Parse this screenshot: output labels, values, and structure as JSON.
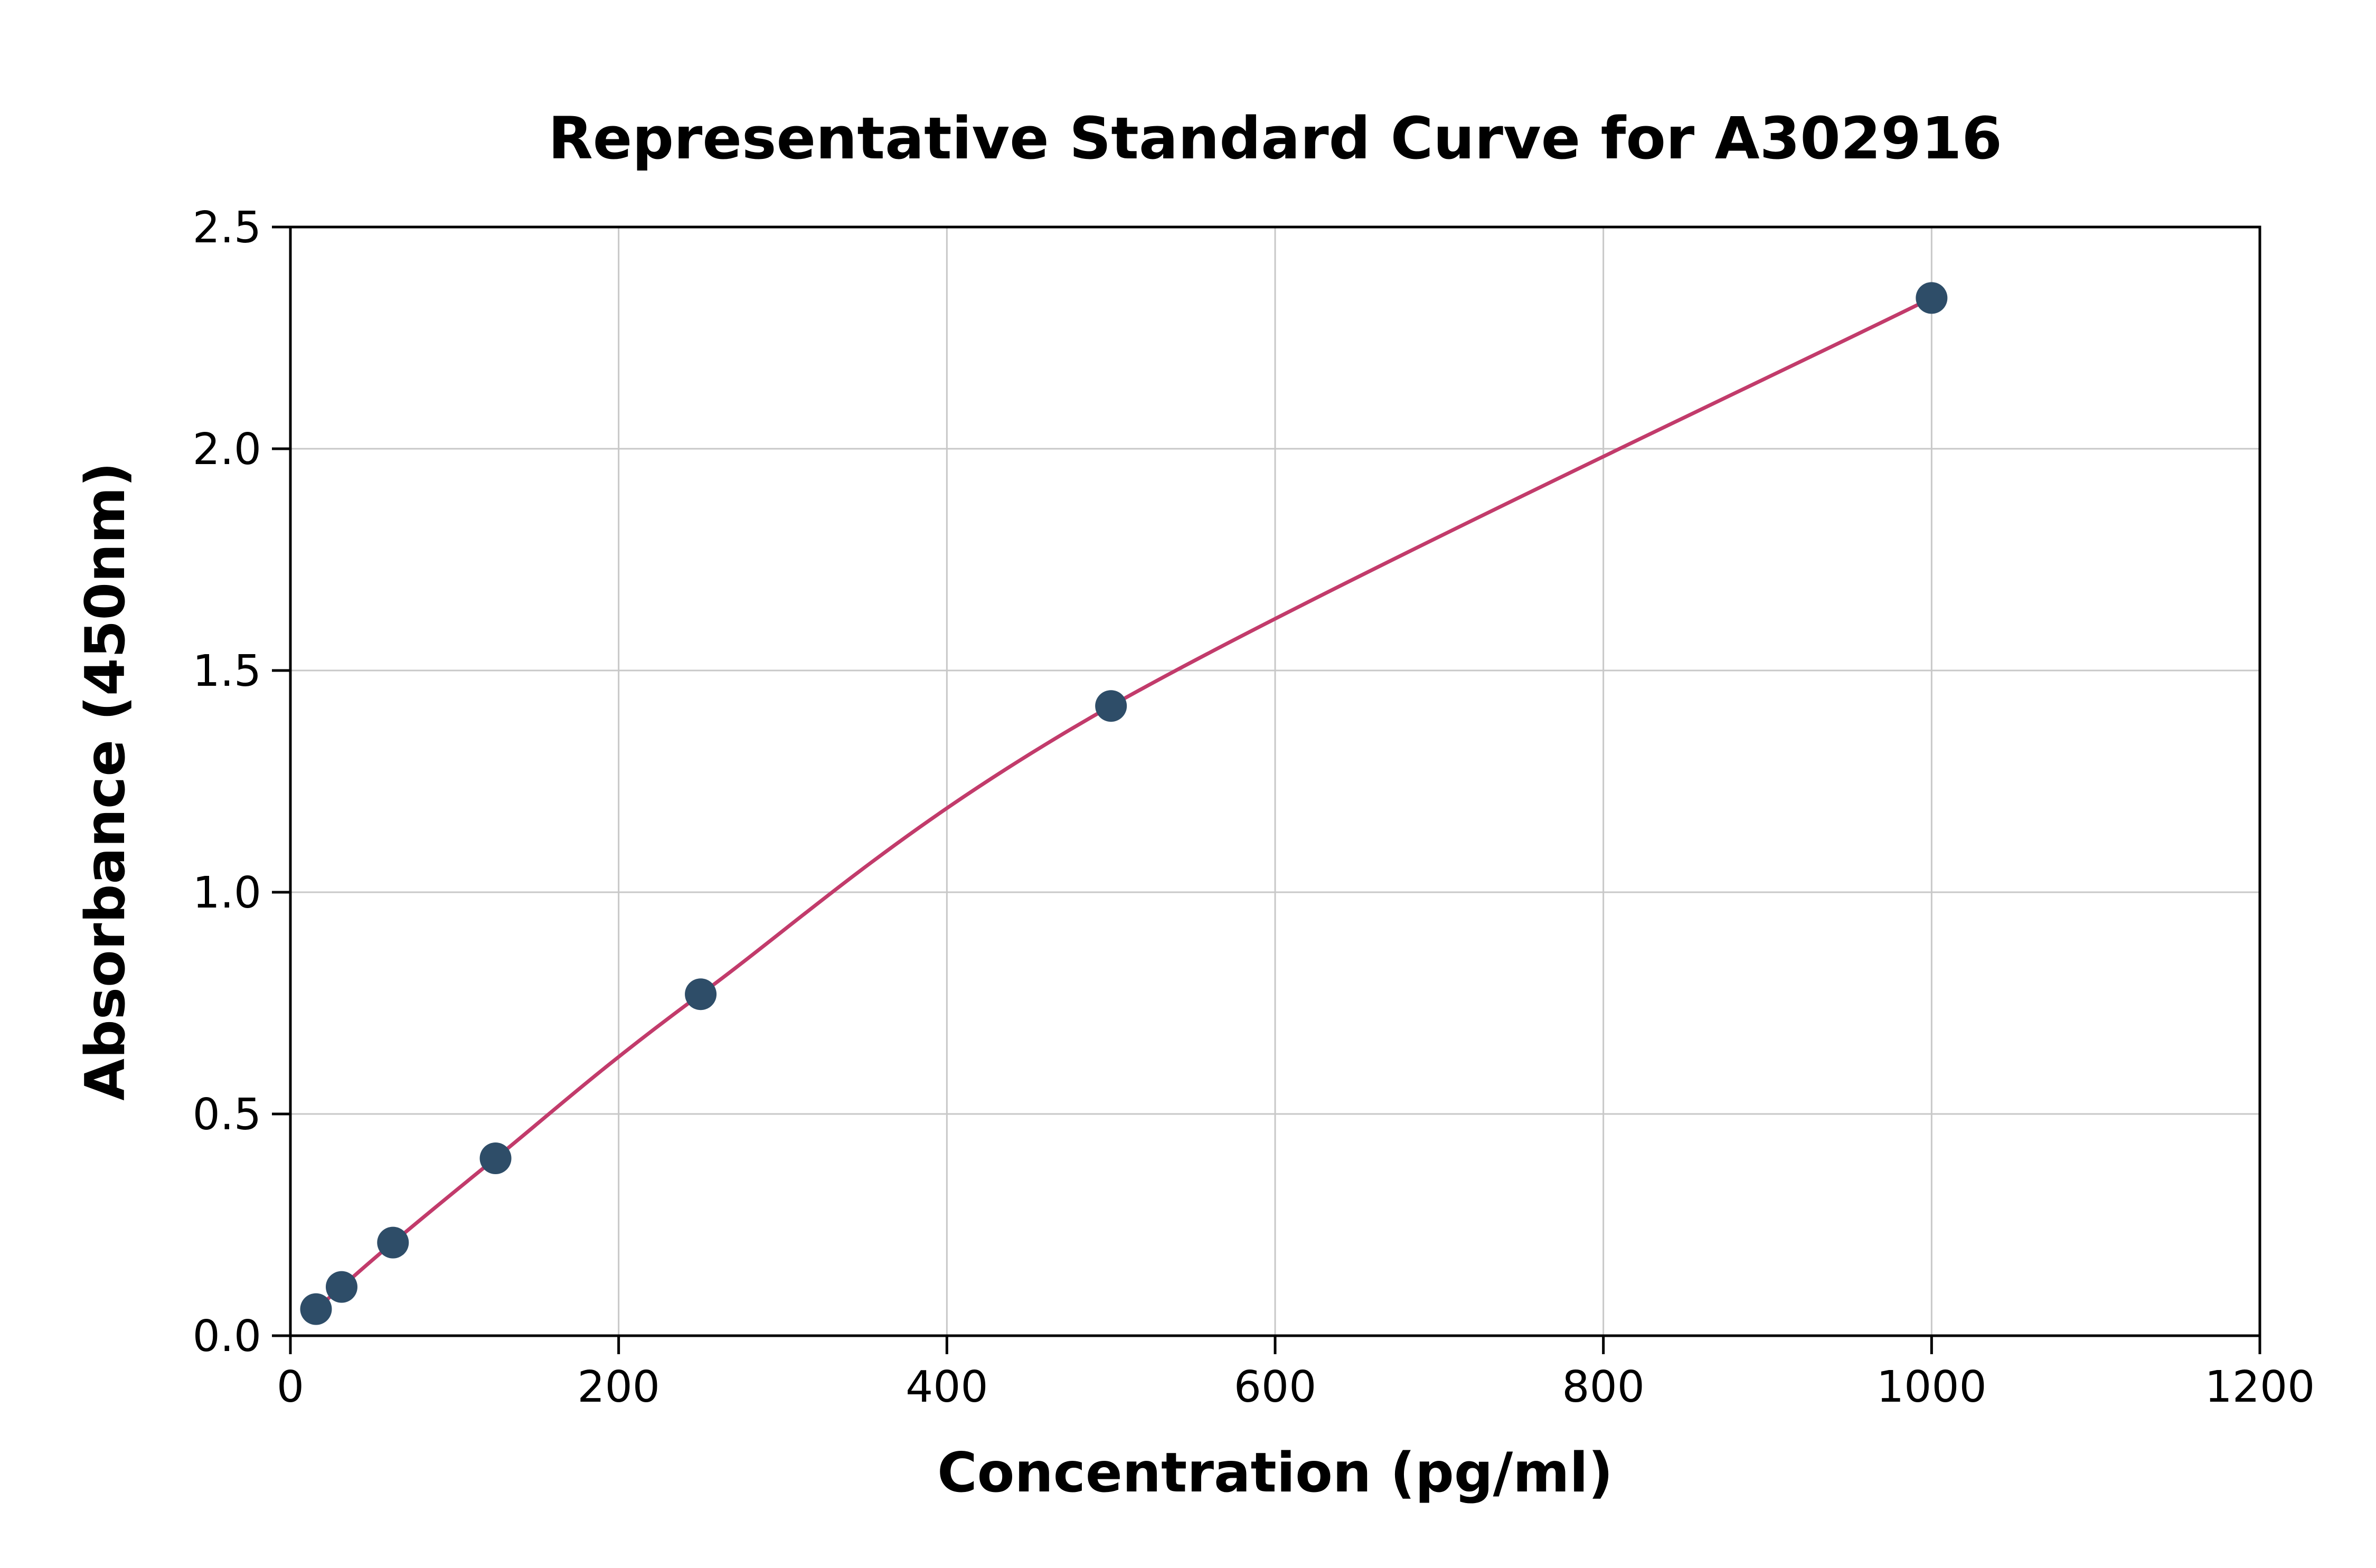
{
  "chart_data": {
    "type": "scatter",
    "title": "Representative Standard Curve for A302916",
    "xlabel": "Concentration (pg/ml)",
    "ylabel": "Absorbance (450nm)",
    "xlim": [
      0,
      1200
    ],
    "ylim": [
      0,
      2.5
    ],
    "xticks": [
      0,
      200,
      400,
      600,
      800,
      1000,
      1200
    ],
    "xtick_labels": [
      "0",
      "200",
      "400",
      "600",
      "800",
      "1000",
      "1200"
    ],
    "yticks": [
      0.0,
      0.5,
      1.0,
      1.5,
      2.0,
      2.5
    ],
    "ytick_labels": [
      "0.0",
      "0.5",
      "1.0",
      "1.5",
      "2.0",
      "2.5"
    ],
    "grid": true,
    "legend_position": "none",
    "colors": {
      "point": "#2e4d68",
      "curve": "#c23b6b",
      "grid": "#c8c8c8",
      "axis": "#000000",
      "background": "#ffffff"
    },
    "series": [
      {
        "name": "standard-data-points",
        "type": "scatter",
        "x": [
          15.6,
          31.2,
          62.5,
          125,
          250,
          500,
          1000
        ],
        "y": [
          0.06,
          0.11,
          0.21,
          0.4,
          0.77,
          1.42,
          2.34
        ]
      },
      {
        "name": "fitted-standard-curve",
        "type": "line",
        "x": [
          15.6,
          31.2,
          62.5,
          125,
          250,
          500,
          1000
        ],
        "y": [
          0.06,
          0.11,
          0.21,
          0.4,
          0.77,
          1.42,
          2.34
        ]
      }
    ]
  }
}
